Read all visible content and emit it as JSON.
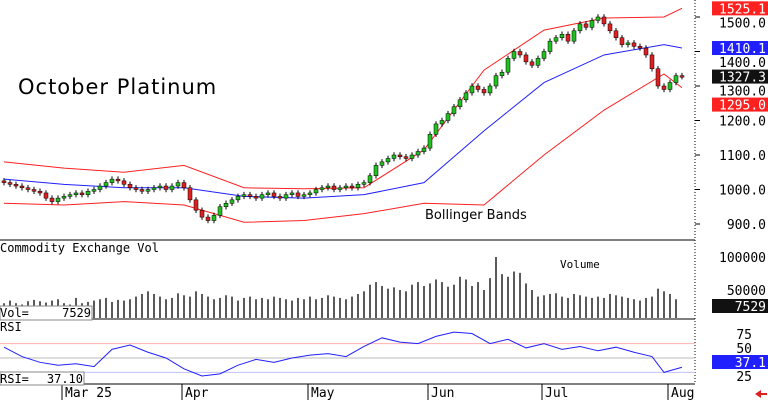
{
  "chart_data": {
    "type": "candlestick",
    "title": "October Platinum",
    "annotation": "Bollinger Bands",
    "price_axis": {
      "ticks": [
        "1500.0",
        "1400.0",
        "1300.0",
        "1200.0",
        "1100.0",
        "1000.0",
        "900.0"
      ],
      "values": [
        1500,
        1400,
        1300,
        1200,
        1100,
        1000,
        900
      ],
      "range": [
        860,
        1545
      ]
    },
    "price_tags": [
      {
        "label": "1525.1",
        "value": 1525.1,
        "color": "#ff2020"
      },
      {
        "label": "1410.1",
        "value": 1410.1,
        "color": "#2020ff"
      },
      {
        "label": "1327.3",
        "value": 1327.3,
        "color": "#111111"
      },
      {
        "label": "1295.0",
        "value": 1295.0,
        "color": "#ff2020"
      }
    ],
    "x_labels": [
      {
        "label": "Mar 25",
        "idx": 10
      },
      {
        "label": "Apr",
        "idx": 30
      },
      {
        "label": "May",
        "idx": 51
      },
      {
        "label": "Jun",
        "idx": 71
      },
      {
        "label": "Jul",
        "idx": 90
      },
      {
        "label": "Aug",
        "idx": 111
      }
    ],
    "closes": [
      1020,
      1015,
      1010,
      1005,
      1000,
      995,
      990,
      975,
      965,
      975,
      980,
      985,
      990,
      985,
      995,
      1000,
      1010,
      1020,
      1030,
      1025,
      1015,
      1005,
      1000,
      995,
      1000,
      1005,
      1010,
      1000,
      1010,
      1020,
      1005,
      970,
      940,
      920,
      910,
      925,
      950,
      960,
      970,
      980,
      985,
      980,
      975,
      985,
      990,
      980,
      975,
      985,
      990,
      980,
      985,
      990,
      1000,
      1005,
      1010,
      1000,
      1005,
      1010,
      1005,
      1015,
      1020,
      1040,
      1070,
      1080,
      1090,
      1100,
      1095,
      1090,
      1100,
      1110,
      1120,
      1160,
      1190,
      1200,
      1220,
      1240,
      1260,
      1280,
      1300,
      1290,
      1280,
      1300,
      1330,
      1340,
      1380,
      1400,
      1390,
      1370,
      1360,
      1380,
      1400,
      1430,
      1440,
      1450,
      1430,
      1460,
      1480,
      1470,
      1490,
      1500,
      1480,
      1460,
      1440,
      1420,
      1425,
      1415,
      1410,
      1390,
      1350,
      1300,
      1290,
      1310,
      1330,
      1327.3
    ],
    "bands": {
      "idx": [
        0,
        10,
        20,
        30,
        40,
        50,
        60,
        70,
        80,
        90,
        100,
        110,
        113
      ],
      "upper": [
        1080,
        1062,
        1050,
        1070,
        1005,
        1002,
        1005,
        1115,
        1346,
        1462,
        1497,
        1500,
        1525.1
      ],
      "middle": [
        1030,
        1015,
        1005,
        1005,
        980,
        975,
        985,
        1020,
        1170,
        1310,
        1390,
        1420,
        1410.1
      ],
      "lower": [
        960,
        955,
        965,
        955,
        905,
        910,
        930,
        960,
        955,
        1100,
        1230,
        1335,
        1295.0
      ]
    },
    "volume": {
      "title": "Commodity Exchange Vol",
      "label": "Volume",
      "readout_label": "Vol=",
      "readout_value": "7529",
      "tag": "7529",
      "ticks": [
        "100000",
        "50000"
      ],
      "tick_values": [
        100000,
        50000
      ],
      "values": [
        30000,
        34000,
        30000,
        28000,
        33000,
        35000,
        33000,
        31000,
        34000,
        36000,
        30000,
        28000,
        38000,
        30000,
        32000,
        34000,
        36000,
        38000,
        32000,
        35000,
        34000,
        36000,
        40000,
        44000,
        48000,
        44000,
        40000,
        36000,
        38000,
        45000,
        42000,
        40000,
        48000,
        44000,
        40000,
        36000,
        38000,
        42000,
        40000,
        34000,
        38000,
        40000,
        36000,
        38000,
        36000,
        40000,
        38000,
        36000,
        34000,
        38000,
        36000,
        40000,
        36000,
        38000,
        42000,
        40000,
        38000,
        36000,
        40000,
        44000,
        48000,
        58000,
        62000,
        56000,
        52000,
        54000,
        50000,
        48000,
        58000,
        62000,
        56000,
        60000,
        66000,
        62000,
        55000,
        58000,
        70000,
        66000,
        56000,
        62000,
        50000,
        68000,
        100000,
        74000,
        70000,
        78000,
        76000,
        60000,
        50000,
        40000,
        42000,
        44000,
        45000,
        40000,
        38000,
        44000,
        42000,
        40000,
        38000,
        40000,
        38000,
        44000,
        42000,
        40000,
        38000,
        36000,
        34000,
        38000,
        40000,
        52000,
        48000,
        44000,
        36000,
        7529
      ]
    },
    "rsi": {
      "title": "RSI",
      "readout_label": "RSI=",
      "readout_value": "37.10",
      "tag": "37.1",
      "ticks": [
        "75",
        "50",
        "25"
      ],
      "tick_values": [
        75,
        50,
        25
      ],
      "idx": [
        0,
        3,
        6,
        9,
        12,
        15,
        18,
        21,
        24,
        27,
        30,
        33,
        36,
        39,
        42,
        45,
        48,
        51,
        54,
        57,
        60,
        63,
        66,
        69,
        72,
        75,
        78,
        81,
        84,
        87,
        90,
        93,
        96,
        99,
        102,
        105,
        108,
        110,
        113
      ],
      "values": [
        65,
        52,
        44,
        40,
        42,
        38,
        62,
        68,
        58,
        50,
        35,
        25,
        28,
        40,
        48,
        44,
        50,
        54,
        56,
        52,
        66,
        78,
        72,
        70,
        80,
        86,
        84,
        70,
        76,
        64,
        70,
        62,
        66,
        60,
        65,
        58,
        52,
        30,
        37.1
      ]
    },
    "footer_icon": "red-left-arrow-icon"
  }
}
